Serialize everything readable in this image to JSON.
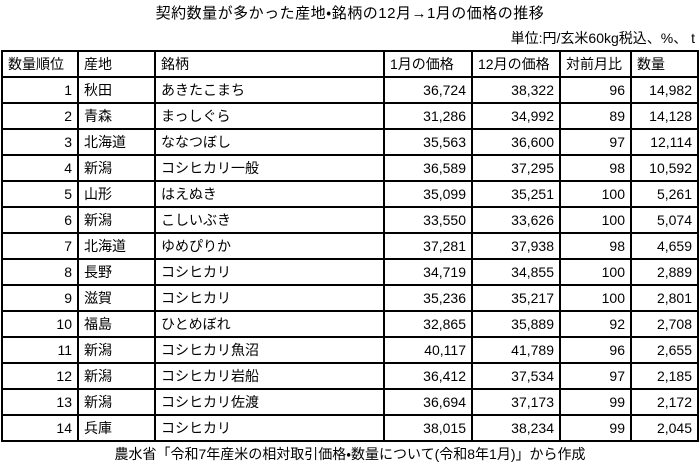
{
  "title": "契約数量が多かった産地・銘柄の12月→1月の価格の推移",
  "unit_note": "単位:円/玄米60kg税込、%、 t",
  "source_note": "農水省「令和7年産米の相対取引価格・数量について(令和8年1月)」から作成",
  "colors": {
    "background": "#ffffff",
    "text": "#000000",
    "border": "#000000"
  },
  "table": {
    "headers": [
      "数量順位",
      "産地",
      "銘柄",
      "1月の価格",
      "12月の価格",
      "対前月比",
      "数量"
    ],
    "rows": [
      [
        "1",
        "秋田",
        "あきたこまち",
        "36,724",
        "38,322",
        "96",
        "14,982"
      ],
      [
        "2",
        "青森",
        "まっしぐら",
        "31,286",
        "34,992",
        "89",
        "14,128"
      ],
      [
        "3",
        "北海道",
        "ななつぼし",
        "35,563",
        "36,600",
        "97",
        "12,114"
      ],
      [
        "4",
        "新潟",
        "コシヒカリ一般",
        "36,589",
        "37,295",
        "98",
        "10,592"
      ],
      [
        "5",
        "山形",
        "はえぬき",
        "35,099",
        "35,251",
        "100",
        "5,261"
      ],
      [
        "6",
        "新潟",
        "こしいぶき",
        "33,550",
        "33,626",
        "100",
        "5,074"
      ],
      [
        "7",
        "北海道",
        "ゆめぴりか",
        "37,281",
        "37,938",
        "98",
        "4,659"
      ],
      [
        "8",
        "長野",
        "コシヒカリ",
        "34,719",
        "34,855",
        "100",
        "2,889"
      ],
      [
        "9",
        "滋賀",
        "コシヒカリ",
        "35,236",
        "35,217",
        "100",
        "2,801"
      ],
      [
        "10",
        "福島",
        "ひとめぼれ",
        "32,865",
        "35,889",
        "92",
        "2,708"
      ],
      [
        "11",
        "新潟",
        "コシヒカリ魚沼",
        "40,117",
        "41,789",
        "96",
        "2,655"
      ],
      [
        "12",
        "新潟",
        "コシヒカリ岩船",
        "36,412",
        "37,534",
        "97",
        "2,185"
      ],
      [
        "13",
        "新潟",
        "コシヒカリ佐渡",
        "36,694",
        "37,173",
        "99",
        "2,172"
      ],
      [
        "14",
        "兵庫",
        "コシヒカリ",
        "38,015",
        "38,234",
        "99",
        "2,045"
      ]
    ]
  }
}
